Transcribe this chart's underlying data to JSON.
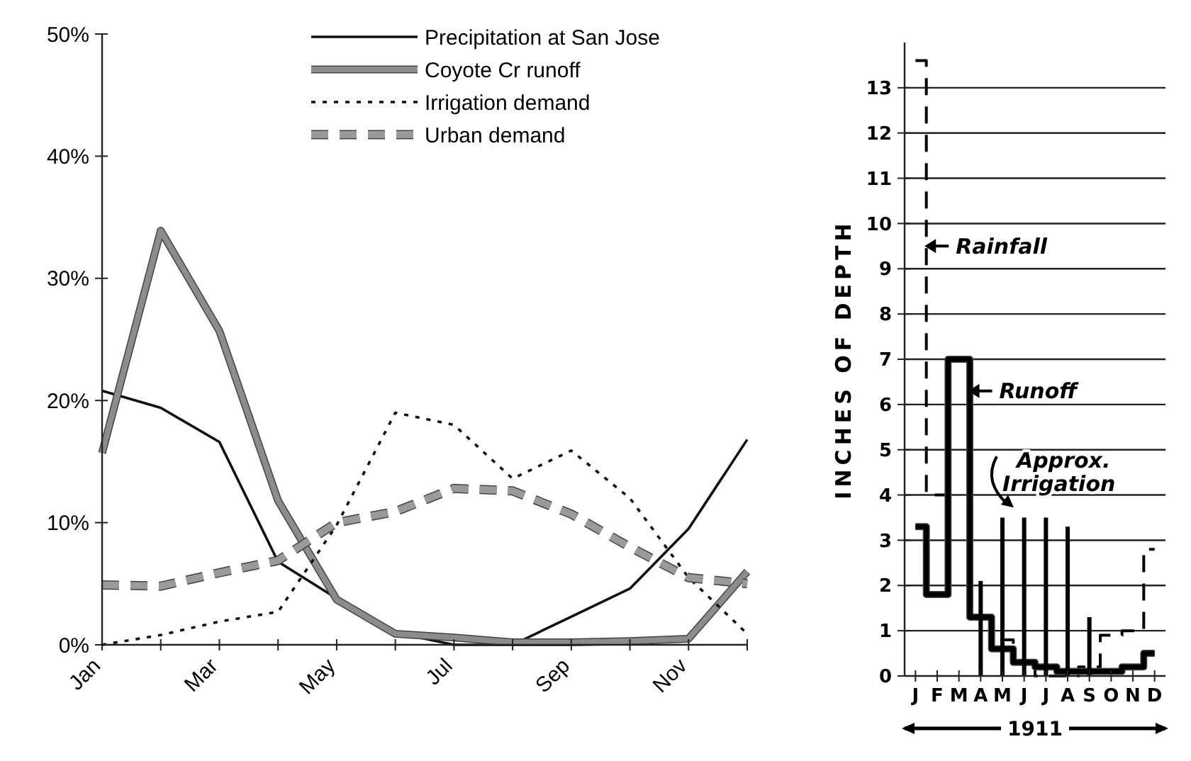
{
  "chart_data": [
    {
      "type": "line",
      "categories": [
        "Jan",
        null,
        "Mar",
        null,
        "May",
        null,
        "Jul",
        null,
        "Sep",
        null,
        "Nov",
        null
      ],
      "ylim": [
        0,
        50
      ],
      "yticks": [
        {
          "value": 0,
          "label": "0%"
        },
        {
          "value": 10,
          "label": "10%"
        },
        {
          "value": 20,
          "label": "20%"
        },
        {
          "value": 30,
          "label": "30%"
        },
        {
          "value": 40,
          "label": "40%"
        },
        {
          "value": 50,
          "label": "50%"
        }
      ],
      "legend": "top",
      "series": [
        {
          "name": "Precipitation at San Jose",
          "color": "#111111",
          "line_style": "solid",
          "values": [
            20.8,
            19.4,
            16.6,
            6.8,
            3.8,
            1.0,
            0,
            0,
            2.3,
            4.6,
            9.5,
            16.8
          ]
        },
        {
          "name": "Coyote Cr runoff",
          "color": "#8c8c8c",
          "line_style": "solid",
          "values": [
            15.7,
            33.9,
            25.7,
            11.8,
            3.7,
            0.9,
            0.6,
            0.2,
            0.2,
            0.3,
            0.5,
            6.0
          ]
        },
        {
          "name": "Irrigation demand",
          "color": "#111111",
          "line_style": "dotted",
          "values": [
            0,
            0.8,
            1.9,
            2.7,
            9.8,
            19.0,
            18.0,
            13.6,
            15.9,
            12.0,
            5.5,
            0.9
          ]
        },
        {
          "name": "Urban demand",
          "color": "#9a9a9a",
          "line_style": "dashed",
          "values": [
            4.9,
            4.8,
            5.9,
            6.9,
            10.0,
            10.9,
            12.8,
            12.6,
            10.7,
            8.0,
            5.5,
            5.0
          ]
        }
      ]
    },
    {
      "type": "step",
      "categories": [
        "J",
        "F",
        "M",
        "A",
        "M",
        "J",
        "J",
        "A",
        "S",
        "O",
        "N",
        "D"
      ],
      "ylim": [
        0,
        14
      ],
      "yticks": [
        0,
        1,
        2,
        3,
        4,
        5,
        6,
        7,
        8,
        9,
        10,
        11,
        12,
        13
      ],
      "grid": "y",
      "ylabel": "INCHES OF DEPTH",
      "xlabel": "1911",
      "legend": "top left",
      "series": [
        {
          "name": "Rainfall",
          "type": "step",
          "color": "#000000",
          "line_style": "dashed",
          "values": [
            13.6,
            4.0,
            7.0,
            1.3,
            0.8,
            0.3,
            0,
            0,
            0.2,
            0.9,
            1.0,
            2.8
          ]
        },
        {
          "name": "Runoff",
          "type": "step",
          "color": "#000000",
          "line_style": "solid",
          "values": [
            3.3,
            1.8,
            7.0,
            1.3,
            0.6,
            0.3,
            0.2,
            0.1,
            0.1,
            0.1,
            0.2,
            0.5
          ]
        },
        {
          "name": "Approx. Irrigation",
          "type": "bar",
          "color": "#000000",
          "values": [
            null,
            null,
            null,
            2.1,
            3.5,
            3.5,
            3.5,
            3.3,
            1.3,
            null,
            null,
            null
          ]
        }
      ]
    }
  ]
}
